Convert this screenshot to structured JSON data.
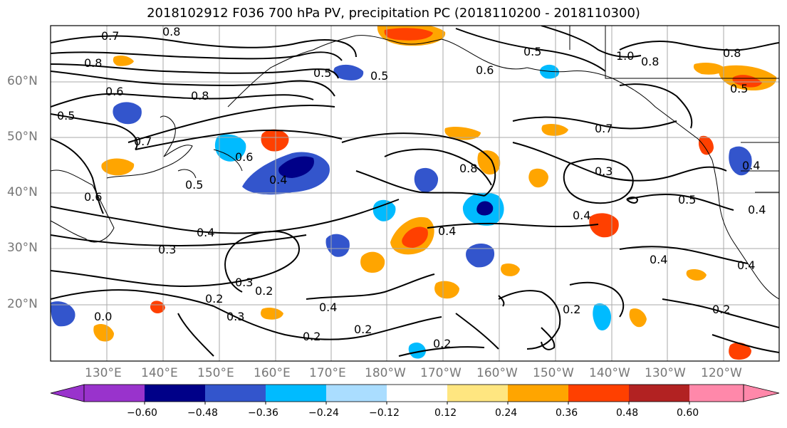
{
  "title": "2018102912 F036 700 hPa PV, precipitation PC (2018110200 - 2018110300)",
  "lat_labels": [
    "60°N",
    "50°N",
    "40°N",
    "30°N",
    "20°N"
  ],
  "lon_labels": [
    "130°E",
    "140°E",
    "150°E",
    "160°E",
    "170°E",
    "180°W",
    "170°W",
    "160°W",
    "150°W",
    "140°W",
    "130°W",
    "120°W"
  ],
  "colorbar": {
    "ticks": [
      "−0.60",
      "−0.48",
      "−0.36",
      "−0.24",
      "−0.12",
      "0.12",
      "0.24",
      "0.36",
      "0.48",
      "0.60"
    ],
    "colors": [
      "#9933cc",
      "#000088",
      "#3355cc",
      "#00bbff",
      "#aaddff",
      "#ffffff",
      "#ffe680",
      "#ffa500",
      "#ff4000",
      "#b22222",
      "#ff88aa"
    ]
  },
  "contour_labels": [
    {
      "text": "0.7"
    },
    {
      "text": "0.8"
    },
    {
      "text": "0.8"
    },
    {
      "text": "0.6"
    },
    {
      "text": "0.5"
    },
    {
      "text": "0.7"
    },
    {
      "text": "0.8"
    },
    {
      "text": "0.6"
    },
    {
      "text": "0.5"
    },
    {
      "text": "0.4"
    },
    {
      "text": "0.6"
    },
    {
      "text": "0.5"
    },
    {
      "text": "0.5"
    },
    {
      "text": "0.6"
    },
    {
      "text": "0.5"
    },
    {
      "text": "1.0"
    },
    {
      "text": "0.8"
    },
    {
      "text": "0.8"
    },
    {
      "text": "0.5"
    },
    {
      "text": "0.7"
    },
    {
      "text": "0.8"
    },
    {
      "text": "0.3"
    },
    {
      "text": "0.5"
    },
    {
      "text": "0.4"
    },
    {
      "text": "0.4"
    },
    {
      "text": "0.4"
    },
    {
      "text": "0.3"
    },
    {
      "text": "0.4"
    },
    {
      "text": "0.3"
    },
    {
      "text": "0.2"
    },
    {
      "text": "0.2"
    },
    {
      "text": "0.3"
    },
    {
      "text": "0.4"
    },
    {
      "text": "0.2"
    },
    {
      "text": "0.2"
    },
    {
      "text": "0.4"
    },
    {
      "text": "0.2"
    },
    {
      "text": "0.2"
    },
    {
      "text": "0.2"
    },
    {
      "text": "0.4"
    },
    {
      "text": "0.4"
    },
    {
      "text": "0.0"
    }
  ]
}
